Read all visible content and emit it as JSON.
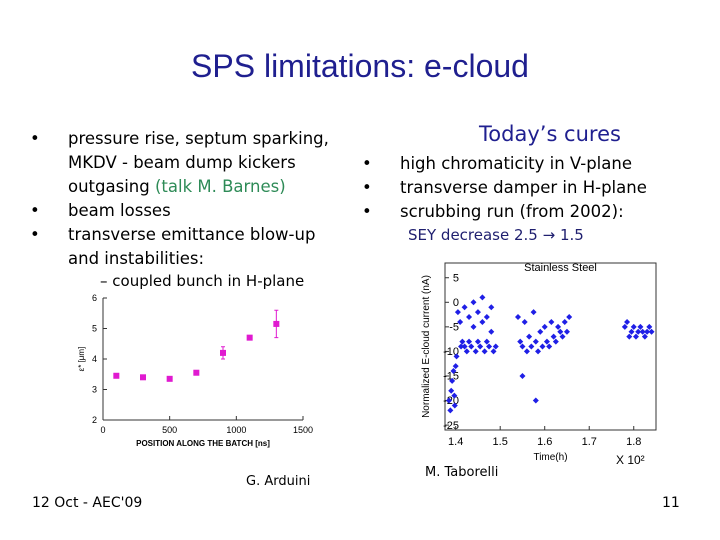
{
  "title": "SPS limitations: e-cloud",
  "left_bullets": [
    {
      "text": "pressure rise, septum sparking, MKDV - beam dump kickers outgasing",
      "note": "(talk M. Barnes)"
    },
    {
      "text": "beam losses"
    },
    {
      "text": "transverse emittance blow-up and instabilities:"
    }
  ],
  "left_sub_bullet": "coupled bunch in H-plane",
  "left_credit": "G. Arduini",
  "right_heading": "Today’s cures",
  "right_bullets": [
    "high chromaticity in V-plane",
    "transverse damper in H-plane",
    "scrubbing run (from 2002):"
  ],
  "right_sub": "SEY decrease 2.5 → 1.5",
  "right_credit": "M. Taborelli",
  "footer_date": "12 Oct - AEC'09",
  "page_number": "11",
  "chart_data": [
    {
      "type": "scatter",
      "x_label": "POSITION ALONG THE BATCH [ns]",
      "y_label": "ε* [μm]",
      "x": [
        100,
        300,
        500,
        700,
        900,
        1100,
        1300
      ],
      "values": [
        3.45,
        3.4,
        3.35,
        3.55,
        4.2,
        4.7,
        5.15
      ],
      "errors": [
        0.05,
        0.05,
        0.05,
        0.05,
        0.2,
        0.05,
        0.45
      ],
      "color": "#e01ad0",
      "marker": "square",
      "frame": "axes",
      "xlim": [
        0,
        1500
      ],
      "ylim": [
        2,
        6
      ],
      "xticks": [
        0,
        500,
        1000,
        1500
      ],
      "yticks": [
        2,
        3,
        4,
        5,
        6
      ]
    },
    {
      "type": "scatter",
      "title": "Stainless Steel",
      "x_label": "Time(h)",
      "y_label": "Normalized E-cloud current (nA)",
      "annotation": "X 10²",
      "x": [
        1.385,
        1.388,
        1.39,
        1.392,
        1.395,
        1.397,
        1.4,
        1.402,
        1.398,
        1.405,
        1.41,
        1.412,
        1.415,
        1.42,
        1.42,
        1.425,
        1.43,
        1.43,
        1.435,
        1.44,
        1.44,
        1.445,
        1.45,
        1.45,
        1.455,
        1.46,
        1.46,
        1.465,
        1.47,
        1.47,
        1.475,
        1.48,
        1.48,
        1.485,
        1.49,
        1.54,
        1.545,
        1.55,
        1.55,
        1.555,
        1.56,
        1.565,
        1.57,
        1.575,
        1.58,
        1.58,
        1.585,
        1.59,
        1.595,
        1.6,
        1.605,
        1.61,
        1.615,
        1.62,
        1.625,
        1.63,
        1.635,
        1.64,
        1.645,
        1.65,
        1.655,
        1.78,
        1.785,
        1.79,
        1.795,
        1.8,
        1.805,
        1.81,
        1.815,
        1.82,
        1.825,
        1.83,
        1.835,
        1.84
      ],
      "values": [
        -20,
        -22,
        -18,
        -16,
        -14,
        -19,
        -13,
        -11,
        -21,
        -2,
        -4,
        -9,
        -8,
        -1,
        -9,
        -10,
        -3,
        -8,
        -9,
        0,
        -5,
        -10,
        -2,
        -8,
        -9,
        1,
        -4,
        -10,
        -3,
        -8,
        -9,
        -1,
        -6,
        -10,
        -9,
        -3,
        -8,
        -15,
        -9,
        -4,
        -10,
        -7,
        -9,
        -2,
        -8,
        -20,
        -10,
        -6,
        -9,
        -5,
        -8,
        -9,
        -4,
        -7,
        -8,
        -5,
        -6,
        -7,
        -4,
        -6,
        -3,
        -5,
        -4,
        -7,
        -6,
        -5,
        -7,
        -6,
        -5,
        -6,
        -7,
        -6,
        -5,
        -6
      ],
      "color": "#1f1fe6",
      "marker": "diamond",
      "frame": "box",
      "xlim": [
        1.376,
        1.85
      ],
      "ylim": [
        -26,
        8
      ],
      "xticks": [
        1.4,
        1.5,
        1.6,
        1.7,
        1.8
      ],
      "yticks": [
        5,
        0,
        -5,
        -10,
        -15,
        -20,
        -25
      ]
    }
  ]
}
